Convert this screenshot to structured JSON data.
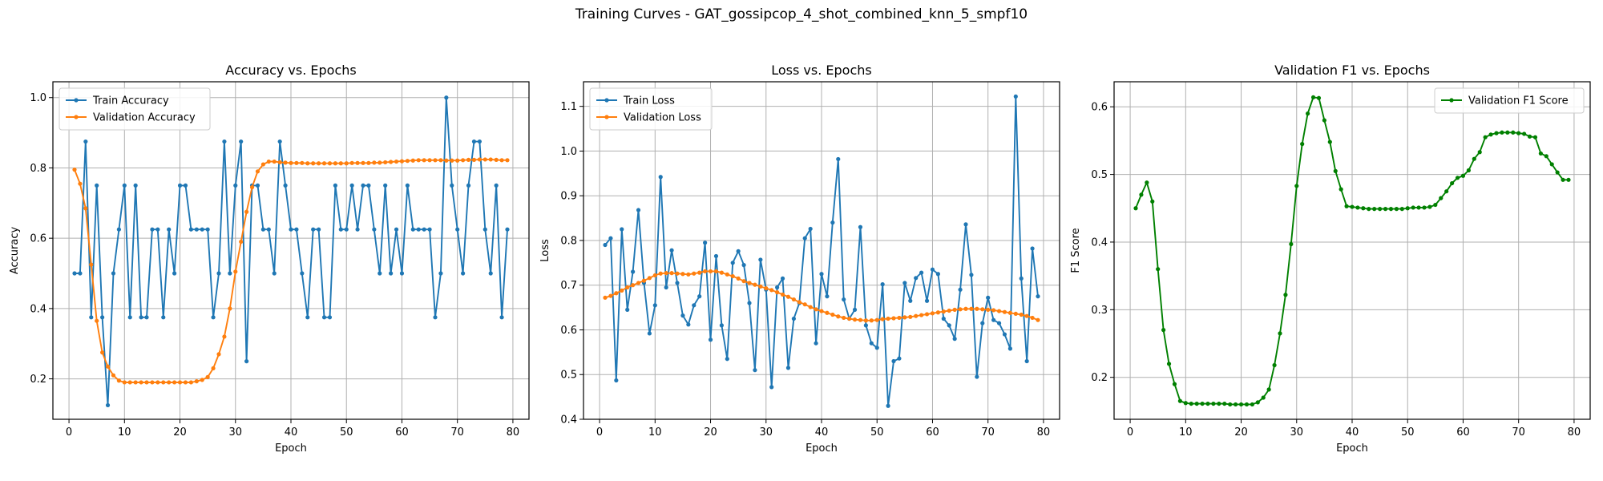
{
  "figure": {
    "suptitle": "Training Curves - GAT_gossipcop_4_shot_combined_knn_5_smpf10"
  },
  "colors": {
    "blue": "#1f77b4",
    "orange": "#ff7f0e",
    "green": "#008000",
    "grid": "#b0b0b0"
  },
  "chart_data": [
    {
      "type": "line",
      "title": "Accuracy vs. Epochs",
      "xlabel": "Epoch",
      "ylabel": "Accuracy",
      "xlim": [
        -2.9,
        82.9
      ],
      "ylim": [
        0.085,
        1.045
      ],
      "xticks": [
        0,
        10,
        20,
        30,
        40,
        50,
        60,
        70,
        80
      ],
      "yticks": [
        0.2,
        0.4,
        0.6,
        0.8,
        1.0
      ],
      "ytick_decimals": 1,
      "grid": true,
      "legend": "upper left",
      "series": [
        {
          "name": "Train Accuracy",
          "color": "#1f77b4",
          "x": [
            1,
            2,
            3,
            4,
            5,
            6,
            7,
            8,
            9,
            10,
            11,
            12,
            13,
            14,
            15,
            16,
            17,
            18,
            19,
            20,
            21,
            22,
            23,
            24,
            25,
            26,
            27,
            28,
            29,
            30,
            31,
            32,
            33,
            34,
            35,
            36,
            37,
            38,
            39,
            40,
            41,
            42,
            43,
            44,
            45,
            46,
            47,
            48,
            49,
            50,
            51,
            52,
            53,
            54,
            55,
            56,
            57,
            58,
            59,
            60,
            61,
            62,
            63,
            64,
            65,
            66,
            67,
            68,
            69,
            70,
            71,
            72,
            73,
            74,
            75,
            76,
            77,
            78,
            79
          ],
          "y": [
            0.5,
            0.5,
            0.875,
            0.375,
            0.75,
            0.375,
            0.125,
            0.5,
            0.625,
            0.75,
            0.375,
            0.75,
            0.375,
            0.375,
            0.625,
            0.625,
            0.375,
            0.625,
            0.5,
            0.75,
            0.75,
            0.625,
            0.625,
            0.625,
            0.625,
            0.375,
            0.5,
            0.875,
            0.5,
            0.75,
            0.875,
            0.25,
            0.75,
            0.75,
            0.625,
            0.625,
            0.5,
            0.875,
            0.75,
            0.625,
            0.625,
            0.5,
            0.375,
            0.625,
            0.625,
            0.375,
            0.375,
            0.75,
            0.625,
            0.625,
            0.75,
            0.625,
            0.75,
            0.75,
            0.625,
            0.5,
            0.75,
            0.5,
            0.625,
            0.5,
            0.75,
            0.625,
            0.625,
            0.625,
            0.625,
            0.375,
            0.5,
            1.0,
            0.75,
            0.625,
            0.5,
            0.75,
            0.875,
            0.875,
            0.625,
            0.5,
            0.75,
            0.375,
            0.625
          ]
        },
        {
          "name": "Validation Accuracy",
          "color": "#ff7f0e",
          "x": [
            1,
            2,
            3,
            4,
            5,
            6,
            7,
            8,
            9,
            10,
            11,
            12,
            13,
            14,
            15,
            16,
            17,
            18,
            19,
            20,
            21,
            22,
            23,
            24,
            25,
            26,
            27,
            28,
            29,
            30,
            31,
            32,
            33,
            34,
            35,
            36,
            37,
            38,
            39,
            40,
            41,
            42,
            43,
            44,
            45,
            46,
            47,
            48,
            49,
            50,
            51,
            52,
            53,
            54,
            55,
            56,
            57,
            58,
            59,
            60,
            61,
            62,
            63,
            64,
            65,
            66,
            67,
            68,
            69,
            70,
            71,
            72,
            73,
            74,
            75,
            76,
            77,
            78,
            79
          ],
          "y": [
            0.795,
            0.755,
            0.685,
            0.525,
            0.365,
            0.275,
            0.235,
            0.21,
            0.195,
            0.19,
            0.19,
            0.19,
            0.19,
            0.19,
            0.19,
            0.19,
            0.19,
            0.19,
            0.19,
            0.19,
            0.19,
            0.19,
            0.193,
            0.197,
            0.205,
            0.23,
            0.27,
            0.32,
            0.4,
            0.505,
            0.59,
            0.675,
            0.745,
            0.79,
            0.81,
            0.818,
            0.818,
            0.816,
            0.815,
            0.814,
            0.814,
            0.814,
            0.813,
            0.813,
            0.813,
            0.813,
            0.813,
            0.813,
            0.813,
            0.813,
            0.814,
            0.814,
            0.814,
            0.814,
            0.815,
            0.815,
            0.816,
            0.817,
            0.818,
            0.819,
            0.82,
            0.821,
            0.822,
            0.822,
            0.822,
            0.822,
            0.822,
            0.821,
            0.821,
            0.821,
            0.822,
            0.823,
            0.823,
            0.824,
            0.824,
            0.824,
            0.823,
            0.822,
            0.822
          ]
        }
      ]
    },
    {
      "type": "line",
      "title": "Loss vs. Epochs",
      "xlabel": "Epoch",
      "ylabel": "Loss",
      "xlim": [
        -2.9,
        82.9
      ],
      "ylim": [
        0.4,
        1.155
      ],
      "xticks": [
        0,
        10,
        20,
        30,
        40,
        50,
        60,
        70,
        80
      ],
      "yticks": [
        0.4,
        0.5,
        0.6,
        0.7,
        0.8,
        0.9,
        1.0,
        1.1
      ],
      "ytick_decimals": 1,
      "grid": true,
      "legend": "upper left",
      "series": [
        {
          "name": "Train Loss",
          "color": "#1f77b4",
          "x": [
            1,
            2,
            3,
            4,
            5,
            6,
            7,
            8,
            9,
            10,
            11,
            12,
            13,
            14,
            15,
            16,
            17,
            18,
            19,
            20,
            21,
            22,
            23,
            24,
            25,
            26,
            27,
            28,
            29,
            30,
            31,
            32,
            33,
            34,
            35,
            36,
            37,
            38,
            39,
            40,
            41,
            42,
            43,
            44,
            45,
            46,
            47,
            48,
            49,
            50,
            51,
            52,
            53,
            54,
            55,
            56,
            57,
            58,
            59,
            60,
            61,
            62,
            63,
            64,
            65,
            66,
            67,
            68,
            69,
            70,
            71,
            72,
            73,
            74,
            75,
            76,
            77,
            78,
            79
          ],
          "y": [
            0.79,
            0.805,
            0.487,
            0.825,
            0.645,
            0.73,
            0.868,
            0.705,
            0.592,
            0.655,
            0.942,
            0.695,
            0.778,
            0.705,
            0.632,
            0.612,
            0.655,
            0.675,
            0.795,
            0.578,
            0.765,
            0.61,
            0.535,
            0.75,
            0.776,
            0.745,
            0.66,
            0.51,
            0.757,
            0.69,
            0.472,
            0.695,
            0.715,
            0.515,
            0.625,
            0.66,
            0.805,
            0.826,
            0.57,
            0.725,
            0.675,
            0.84,
            0.982,
            0.668,
            0.625,
            0.645,
            0.83,
            0.61,
            0.57,
            0.56,
            0.702,
            0.43,
            0.53,
            0.536,
            0.705,
            0.665,
            0.716,
            0.728,
            0.665,
            0.735,
            0.725,
            0.625,
            0.61,
            0.58,
            0.69,
            0.836,
            0.723,
            0.495,
            0.615,
            0.672,
            0.622,
            0.615,
            0.59,
            0.558,
            1.122,
            0.715,
            0.53,
            0.782,
            0.675
          ]
        },
        {
          "name": "Validation Loss",
          "color": "#ff7f0e",
          "x": [
            1,
            2,
            3,
            4,
            5,
            6,
            7,
            8,
            9,
            10,
            11,
            12,
            13,
            14,
            15,
            16,
            17,
            18,
            19,
            20,
            21,
            22,
            23,
            24,
            25,
            26,
            27,
            28,
            29,
            30,
            31,
            32,
            33,
            34,
            35,
            36,
            37,
            38,
            39,
            40,
            41,
            42,
            43,
            44,
            45,
            46,
            47,
            48,
            49,
            50,
            51,
            52,
            53,
            54,
            55,
            56,
            57,
            58,
            59,
            60,
            61,
            62,
            63,
            64,
            65,
            66,
            67,
            68,
            69,
            70,
            71,
            72,
            73,
            74,
            75,
            76,
            77,
            78,
            79
          ],
          "y": [
            0.672,
            0.676,
            0.682,
            0.688,
            0.695,
            0.7,
            0.705,
            0.71,
            0.716,
            0.722,
            0.726,
            0.727,
            0.727,
            0.726,
            0.725,
            0.724,
            0.726,
            0.728,
            0.731,
            0.731,
            0.731,
            0.728,
            0.724,
            0.72,
            0.715,
            0.709,
            0.705,
            0.701,
            0.697,
            0.693,
            0.689,
            0.684,
            0.679,
            0.674,
            0.668,
            0.662,
            0.657,
            0.651,
            0.646,
            0.642,
            0.638,
            0.634,
            0.63,
            0.627,
            0.625,
            0.623,
            0.622,
            0.621,
            0.621,
            0.622,
            0.624,
            0.625,
            0.626,
            0.627,
            0.628,
            0.629,
            0.631,
            0.633,
            0.635,
            0.637,
            0.639,
            0.641,
            0.643,
            0.645,
            0.646,
            0.647,
            0.647,
            0.647,
            0.646,
            0.645,
            0.644,
            0.642,
            0.64,
            0.638,
            0.636,
            0.634,
            0.631,
            0.627,
            0.622
          ]
        }
      ]
    },
    {
      "type": "line",
      "title": "Validation F1 vs. Epochs",
      "xlabel": "Epoch",
      "ylabel": "F1 Score",
      "xlim": [
        -2.9,
        82.9
      ],
      "ylim": [
        0.138,
        0.637
      ],
      "xticks": [
        0,
        10,
        20,
        30,
        40,
        50,
        60,
        70,
        80
      ],
      "yticks": [
        0.2,
        0.3,
        0.4,
        0.5,
        0.6
      ],
      "ytick_decimals": 1,
      "grid": true,
      "legend": "upper right",
      "series": [
        {
          "name": "Validation F1 Score",
          "color": "#008000",
          "x": [
            1,
            2,
            3,
            4,
            5,
            6,
            7,
            8,
            9,
            10,
            11,
            12,
            13,
            14,
            15,
            16,
            17,
            18,
            19,
            20,
            21,
            22,
            23,
            24,
            25,
            26,
            27,
            28,
            29,
            30,
            31,
            32,
            33,
            34,
            35,
            36,
            37,
            38,
            39,
            40,
            41,
            42,
            43,
            44,
            45,
            46,
            47,
            48,
            49,
            50,
            51,
            52,
            53,
            54,
            55,
            56,
            57,
            58,
            59,
            60,
            61,
            62,
            63,
            64,
            65,
            66,
            67,
            68,
            69,
            70,
            71,
            72,
            73,
            74,
            75,
            76,
            77,
            78,
            79
          ],
          "y": [
            0.45,
            0.47,
            0.488,
            0.46,
            0.36,
            0.27,
            0.22,
            0.19,
            0.165,
            0.162,
            0.161,
            0.161,
            0.161,
            0.161,
            0.161,
            0.161,
            0.161,
            0.16,
            0.16,
            0.16,
            0.16,
            0.16,
            0.163,
            0.17,
            0.182,
            0.218,
            0.265,
            0.322,
            0.397,
            0.483,
            0.545,
            0.59,
            0.614,
            0.613,
            0.58,
            0.548,
            0.505,
            0.478,
            0.453,
            0.452,
            0.451,
            0.45,
            0.449,
            0.449,
            0.449,
            0.449,
            0.449,
            0.449,
            0.449,
            0.45,
            0.451,
            0.451,
            0.451,
            0.452,
            0.455,
            0.465,
            0.475,
            0.487,
            0.495,
            0.498,
            0.506,
            0.523,
            0.533,
            0.555,
            0.559,
            0.561,
            0.562,
            0.562,
            0.562,
            0.561,
            0.56,
            0.556,
            0.555,
            0.531,
            0.527,
            0.515,
            0.503,
            0.492,
            0.492
          ]
        }
      ]
    }
  ]
}
